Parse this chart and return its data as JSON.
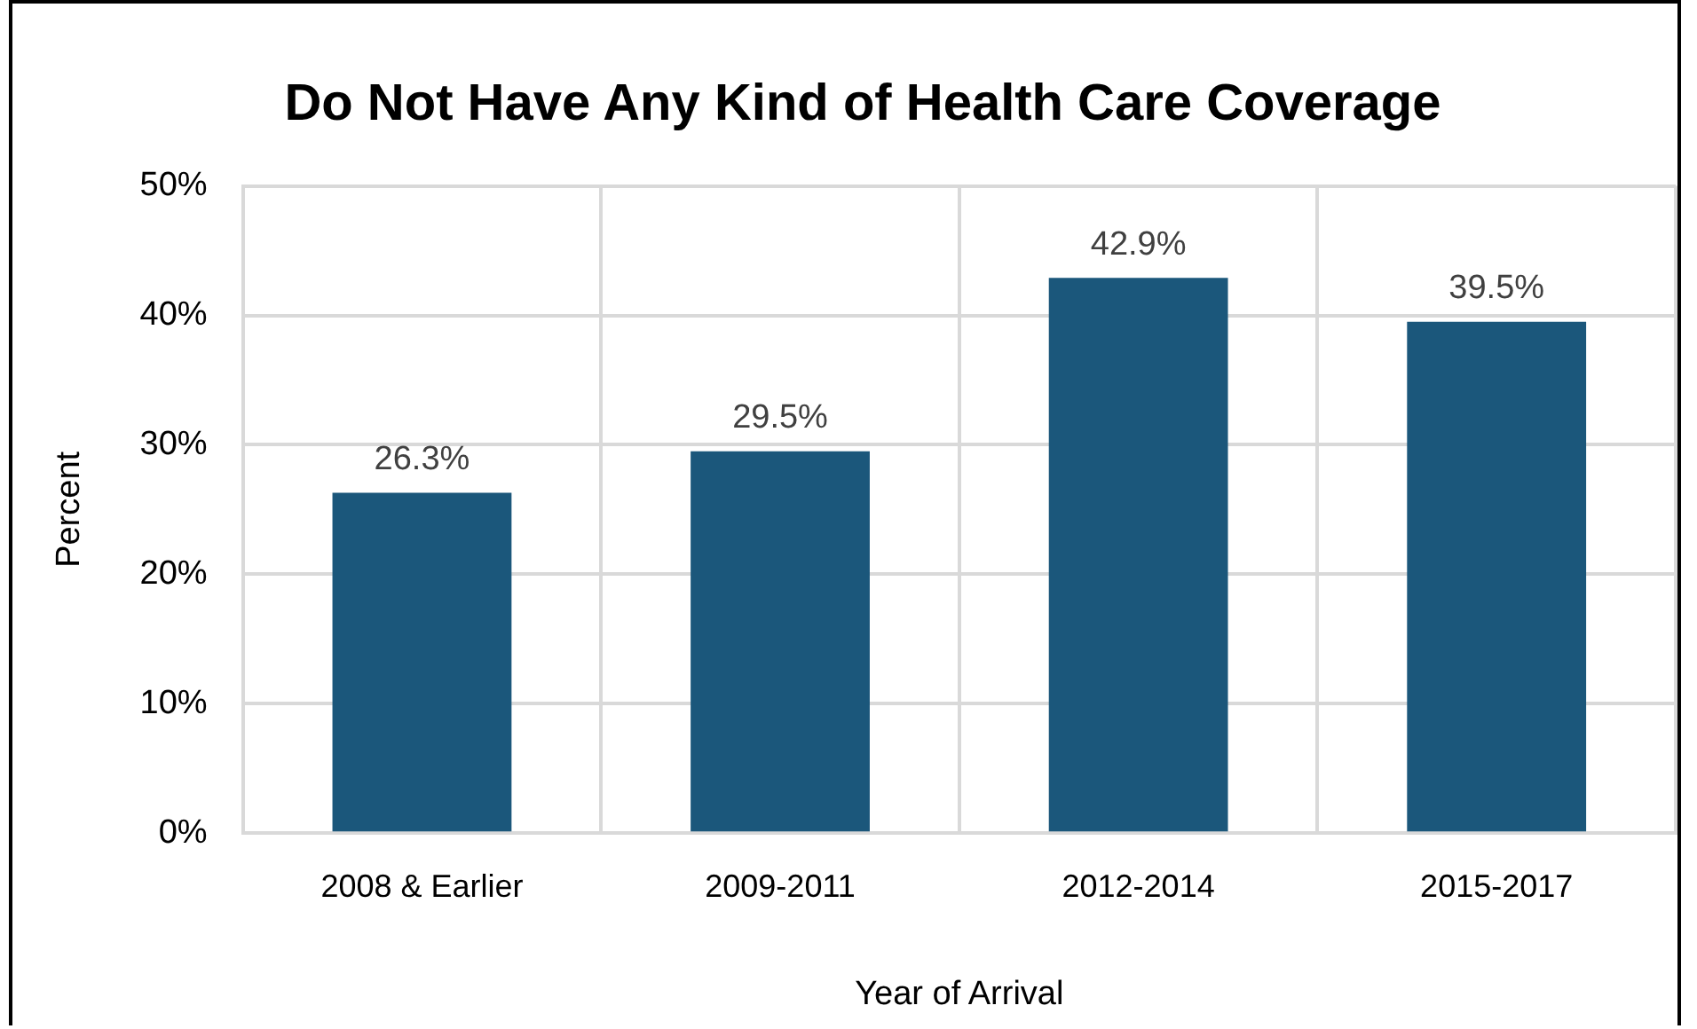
{
  "chart_data": {
    "type": "bar",
    "title": "Do Not Have Any Kind of Health Care Coverage",
    "xlabel": "Year of Arrival",
    "ylabel": "Percent",
    "categories": [
      "2008 & Earlier",
      "2009-2011",
      "2012-2014",
      "2015-2017"
    ],
    "values": [
      26.3,
      29.5,
      42.9,
      39.5
    ],
    "color": "#1b577b",
    "value_labels": [
      "26.3%",
      "29.5%",
      "42.9%",
      "39.5%"
    ],
    "ylim": [
      0,
      50
    ],
    "yticks": [
      {
        "value": 0,
        "label": "0%"
      },
      {
        "value": 10,
        "label": "10%"
      },
      {
        "value": 20,
        "label": "20%"
      },
      {
        "value": 30,
        "label": "30%"
      },
      {
        "value": 40,
        "label": "40%"
      },
      {
        "value": 50,
        "label": "50%"
      }
    ],
    "grid": true
  }
}
